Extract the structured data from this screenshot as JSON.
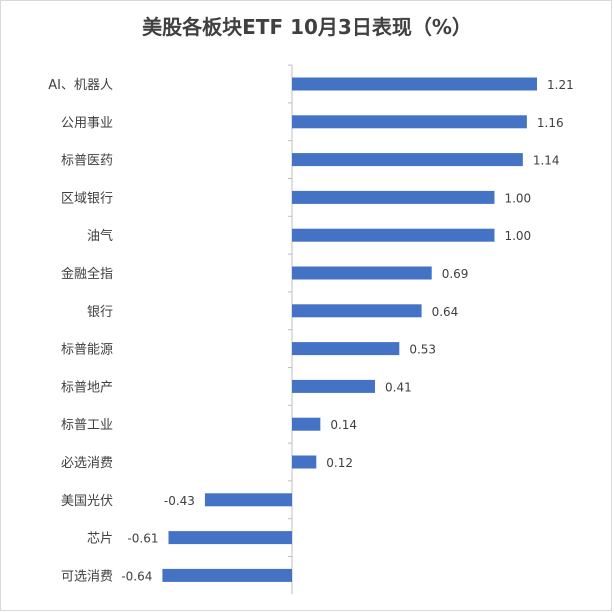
{
  "chart_data": {
    "type": "bar",
    "orientation": "horizontal",
    "title": "美股各板块ETF 10月3日表现（%）",
    "xlabel": "",
    "ylabel": "",
    "xlim": [
      -0.7,
      1.3
    ],
    "grid": false,
    "categories": [
      "AI、机器人",
      "公用事业",
      "标普医药",
      "区域银行",
      "油气",
      "金融全指",
      "银行",
      "标普能源",
      "标普地产",
      "标普工业",
      "必选消费",
      "美国光伏",
      "芯片",
      "可选消费"
    ],
    "values": [
      1.21,
      1.16,
      1.14,
      1.0,
      1.0,
      0.69,
      0.64,
      0.53,
      0.41,
      0.14,
      0.12,
      -0.43,
      -0.61,
      -0.64
    ],
    "value_labels": [
      "1.21",
      "1.16",
      "1.14",
      "1.00",
      "1.00",
      "0.69",
      "0.64",
      "0.53",
      "0.41",
      "0.14",
      "0.12",
      "-0.43",
      "-0.61",
      "-0.64"
    ],
    "bar_color": "#4472c4"
  }
}
